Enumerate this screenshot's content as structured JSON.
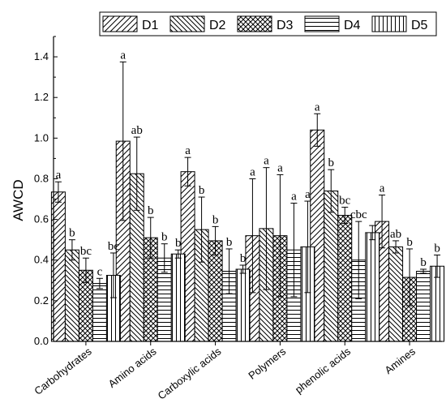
{
  "chart_data": {
    "type": "bar",
    "categories": [
      "Carbohydrates",
      "Amino acids",
      "Carboxylic acids",
      "Polymers",
      "phenolic acids",
      "Amines"
    ],
    "ylabel": "AWCD",
    "xlabel": "",
    "ylim": [
      0,
      1.5
    ],
    "yticks": [
      "0.0",
      "0.2",
      "0.4",
      "0.6",
      "0.8",
      "1.0",
      "1.2",
      "1.4"
    ],
    "legend_position": "top",
    "series": [
      {
        "name": "D1",
        "pattern": "hatch-forward",
        "values": [
          0.735,
          0.985,
          0.835,
          0.52,
          1.04,
          0.59
        ],
        "errors": [
          0.05,
          0.39,
          0.07,
          0.28,
          0.08,
          0.13
        ],
        "labels": [
          "a",
          "a",
          "a",
          "a",
          "a",
          "a"
        ]
      },
      {
        "name": "D2",
        "pattern": "hatch-back",
        "values": [
          0.45,
          0.825,
          0.55,
          0.555,
          0.74,
          0.465
        ],
        "errors": [
          0.05,
          0.18,
          0.16,
          0.3,
          0.105,
          0.03
        ],
        "labels": [
          "b",
          "ab",
          "b",
          "a",
          "b",
          "ab"
        ]
      },
      {
        "name": "D3",
        "pattern": "crosshatch",
        "values": [
          0.35,
          0.51,
          0.495,
          0.52,
          0.62,
          0.315
        ],
        "errors": [
          0.06,
          0.1,
          0.07,
          0.3,
          0.04,
          0.14
        ],
        "labels": [
          "bc",
          "b",
          "b",
          "a",
          "bc",
          "b"
        ]
      },
      {
        "name": "D4",
        "pattern": "horizontal",
        "values": [
          0.285,
          0.41,
          0.345,
          0.45,
          0.4,
          0.345
        ],
        "errors": [
          0.025,
          0.07,
          0.11,
          0.23,
          0.19,
          0.01
        ],
        "labels": [
          "c",
          "b",
          "b",
          "a",
          "cbc",
          "b"
        ]
      },
      {
        "name": "D5",
        "pattern": "vertical",
        "values": [
          0.325,
          0.43,
          0.355,
          0.465,
          0.535,
          0.37
        ],
        "errors": [
          0.11,
          0.02,
          0.02,
          0.225,
          0.035,
          0.055
        ],
        "labels": [
          "bc",
          "b",
          "b",
          "a",
          "",
          "b"
        ]
      }
    ]
  }
}
